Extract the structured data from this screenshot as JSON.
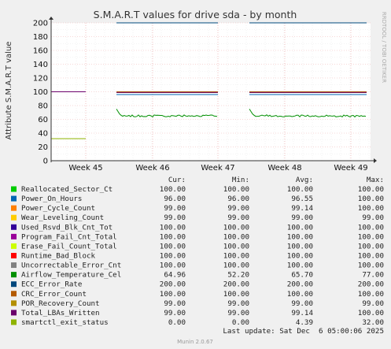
{
  "chart_data": {
    "type": "line",
    "title": "S.M.A.R.T values for drive sda - by month",
    "ylabel": "Attribute S.M.A.R.T value",
    "ylim": [
      0,
      200
    ],
    "yticks": [
      0,
      20,
      40,
      60,
      80,
      100,
      120,
      140,
      160,
      180,
      200
    ],
    "grid": true,
    "xticks": [
      "Week 45",
      "Week 46",
      "Week 47",
      "Week 48",
      "Week 49"
    ],
    "side_label": "RRDTOOL / TOBI OETIKER",
    "columns": [
      "Cur:",
      "Min:",
      "Avg:",
      "Max:"
    ],
    "series": [
      {
        "name": "Reallocated_Sector_Ct",
        "color": "#00cc00",
        "cur": "100.00",
        "min": "100.00",
        "avg": "100.00",
        "max": "100.00",
        "level": 100
      },
      {
        "name": "Power_On_Hours",
        "color": "#0066b3",
        "cur": "96.00",
        "min": "96.00",
        "avg": "96.55",
        "max": "100.00",
        "level": 96
      },
      {
        "name": "Power_Cycle_Count",
        "color": "#ff8000",
        "cur": "99.00",
        "min": "99.00",
        "avg": "99.14",
        "max": "100.00",
        "level": 99
      },
      {
        "name": "Wear_Leveling_Count",
        "color": "#ffcc00",
        "cur": "99.00",
        "min": "99.00",
        "avg": "99.00",
        "max": "99.00",
        "level": 99
      },
      {
        "name": "Used_Rsvd_Blk_Cnt_Tot",
        "color": "#330099",
        "cur": "100.00",
        "min": "100.00",
        "avg": "100.00",
        "max": "100.00",
        "level": 100
      },
      {
        "name": "Program_Fail_Cnt_Total",
        "color": "#990099",
        "cur": "100.00",
        "min": "100.00",
        "avg": "100.00",
        "max": "100.00",
        "level": 100
      },
      {
        "name": "Erase_Fail_Count_Total",
        "color": "#ccff00",
        "cur": "100.00",
        "min": "100.00",
        "avg": "100.00",
        "max": "100.00",
        "level": 100
      },
      {
        "name": "Runtime_Bad_Block",
        "color": "#ff0000",
        "cur": "100.00",
        "min": "100.00",
        "avg": "100.00",
        "max": "100.00",
        "level": 100
      },
      {
        "name": "Uncorrectable_Error_Cnt",
        "color": "#808080",
        "cur": "100.00",
        "min": "100.00",
        "avg": "100.00",
        "max": "100.00",
        "level": 100
      },
      {
        "name": "Airflow_Temperature_Cel",
        "color": "#008f00",
        "cur": "64.96",
        "min": "52.20",
        "avg": "65.70",
        "max": "77.00",
        "level": 65
      },
      {
        "name": "ECC_Error_Rate",
        "color": "#00487d",
        "cur": "200.00",
        "min": "200.00",
        "avg": "200.00",
        "max": "200.00",
        "level": 200
      },
      {
        "name": "CRC_Error_Count",
        "color": "#b35a00",
        "cur": "100.00",
        "min": "100.00",
        "avg": "100.00",
        "max": "100.00",
        "level": 100
      },
      {
        "name": "POR_Recovery_Count",
        "color": "#b38f00",
        "cur": "99.00",
        "min": "99.00",
        "avg": "99.00",
        "max": "99.00",
        "level": 99
      },
      {
        "name": "Total_LBAs_Written",
        "color": "#6b006b",
        "cur": "99.00",
        "min": "99.00",
        "avg": "99.14",
        "max": "100.00",
        "level": 99
      },
      {
        "name": "smartctl_exit_status",
        "color": "#8fb300",
        "cur": "0.00",
        "min": "0.00",
        "avg": "4.39",
        "max": "32.00",
        "level": 0
      }
    ],
    "first_segment": [
      {
        "name": "Total_LBAs_Written",
        "color": "#6b006b",
        "y": 100
      },
      {
        "name": "smartctl_exit_status",
        "color": "#8fb300",
        "y": 32
      }
    ],
    "last_update": "Last update: Sat Dec  6 05:00:06 2025",
    "footer": "Munin 2.0.67"
  }
}
